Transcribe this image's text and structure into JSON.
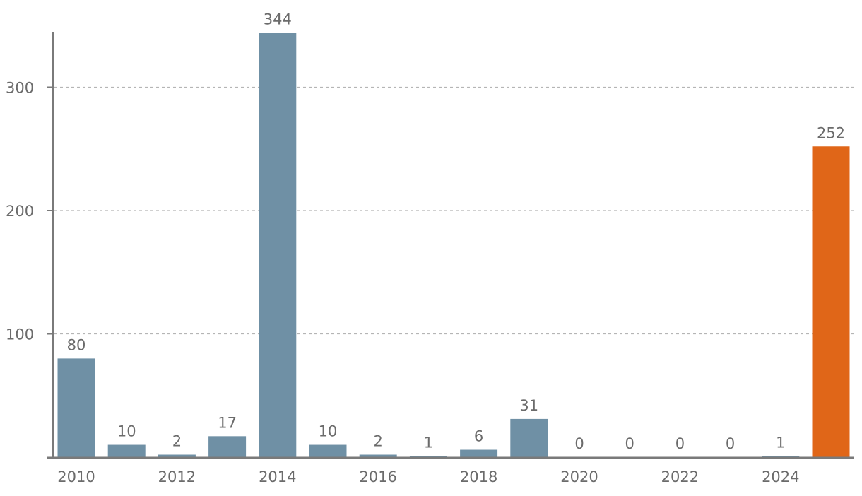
{
  "chart_data": {
    "type": "bar",
    "title": "",
    "xlabel": "",
    "ylabel": "",
    "categories": [
      "2010",
      "2011",
      "2012",
      "2013",
      "2014",
      "2015",
      "2016",
      "2017",
      "2018",
      "2019",
      "2020",
      "2021",
      "2022",
      "2023",
      "2024",
      "2025"
    ],
    "x_tick_labels": [
      "2010",
      "2012",
      "2014",
      "2016",
      "2018",
      "2020",
      "2022",
      "2024"
    ],
    "values": [
      80,
      10,
      2,
      17,
      344,
      10,
      2,
      1,
      6,
      31,
      0,
      0,
      0,
      0,
      1,
      252
    ],
    "value_labels": [
      "80",
      "10",
      "2",
      "17",
      "344",
      "10",
      "2",
      "1",
      "6",
      "31",
      "0",
      "0",
      "0",
      "0",
      "1",
      "252"
    ],
    "y_ticks": [
      100,
      200,
      300
    ],
    "y_tick_labels": [
      "100",
      "200",
      "300"
    ],
    "ylim": [
      0,
      345
    ],
    "grid": true,
    "legend": "none",
    "colors": {
      "default_bar": "#6f90a5",
      "highlight_bar": "#e06618",
      "axis": "#7a7a7a",
      "grid": "#b5b5b5",
      "text": "#6b6b6b"
    },
    "highlight_category": "2025"
  }
}
